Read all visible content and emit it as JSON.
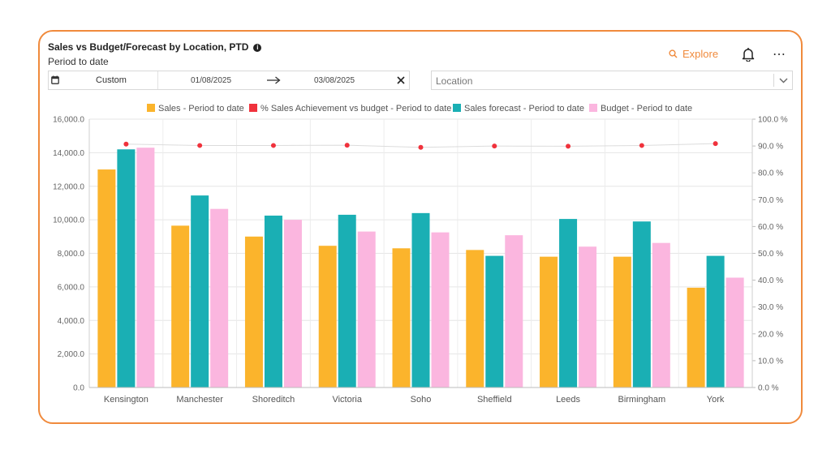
{
  "header": {
    "title": "Sales vs Budget/Forecast by Location, PTD",
    "subtitle": "Period to date",
    "explore_label": "Explore"
  },
  "filters": {
    "range_label": "Custom",
    "start_date": "01/08/2025",
    "end_date": "03/08/2025",
    "location_placeholder": "Location"
  },
  "icons": [
    "calendar-icon",
    "arrow-right-icon",
    "close-icon",
    "search-icon",
    "bell-icon",
    "more-icon",
    "chevron-down-icon",
    "info-icon"
  ],
  "colors": {
    "accent": "#F08A3C",
    "sales": "#FBB42C",
    "achievement": "#F0323C",
    "forecast": "#1AAFB4",
    "budget": "#FBB6DF"
  },
  "chart_data": {
    "type": "bar",
    "categories": [
      "Kensington",
      "Manchester",
      "Shoreditch",
      "Victoria",
      "Soho",
      "Sheffield",
      "Leeds",
      "Birmingham",
      "York"
    ],
    "series": [
      {
        "name": "Sales - Period to date",
        "kind": "bar",
        "axis": "left",
        "values": [
          13000,
          9650,
          9000,
          8450,
          8300,
          8200,
          7800,
          7800,
          5950
        ]
      },
      {
        "name": "% Sales Achievement vs budget - Period to date",
        "kind": "point",
        "axis": "right",
        "values": [
          90.7,
          90.2,
          90.2,
          90.3,
          89.5,
          90.0,
          89.9,
          90.2,
          90.9
        ]
      },
      {
        "name": "Sales forecast - Period to date",
        "kind": "bar",
        "axis": "left",
        "values": [
          14200,
          11450,
          10250,
          10300,
          10400,
          7850,
          10050,
          9900,
          7850
        ]
      },
      {
        "name": "Budget - Period to date",
        "kind": "bar",
        "axis": "left",
        "values": [
          14300,
          10650,
          10000,
          9300,
          9250,
          9080,
          8400,
          8620,
          6550
        ]
      }
    ],
    "ylim": [
      0,
      16000
    ],
    "y_ticks": [
      "0.0",
      "2,000.0",
      "4,000.0",
      "6,000.0",
      "8,000.0",
      "10,000.0",
      "12,000.0",
      "14,000.0",
      "16,000.0"
    ],
    "y2lim": [
      0,
      100
    ],
    "y2_ticks": [
      "0.0 %",
      "10.0 %",
      "20.0 %",
      "30.0 %",
      "40.0 %",
      "50.0 %",
      "60.0 %",
      "70.0 %",
      "80.0 %",
      "90.0 %",
      "100.0 %"
    ],
    "grid": true,
    "legend_position": "top"
  }
}
